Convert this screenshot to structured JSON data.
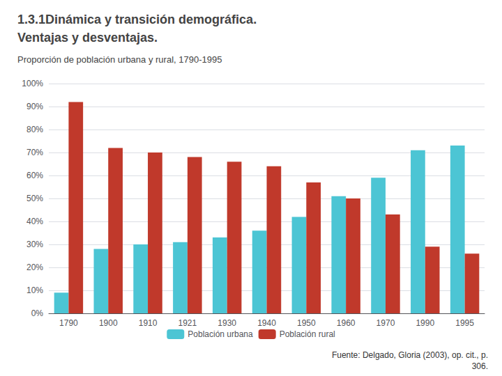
{
  "chart_data": {
    "type": "bar",
    "title": "1.3.1Dinámica y transición demográfica.\nVentajas y desventajas.",
    "subtitle": "Proporción de población urbana y rural, 1790-1995",
    "categories": [
      "1790",
      "1900",
      "1910",
      "1921",
      "1930",
      "1940",
      "1950",
      "1960",
      "1970",
      "1990",
      "1995"
    ],
    "series": [
      {
        "name": "Población urbana",
        "color": "#4CC5D4",
        "values": [
          9,
          28,
          30,
          31,
          33,
          36,
          42,
          51,
          59,
          71,
          73
        ]
      },
      {
        "name": "Población rural",
        "color": "#C0392B",
        "values": [
          92,
          72,
          70,
          68,
          66,
          64,
          57,
          50,
          43,
          29,
          26
        ]
      }
    ],
    "ylim": [
      0,
      100
    ],
    "yticks": [
      {
        "value": 0,
        "label": "0%"
      },
      {
        "value": 10,
        "label": "10%"
      },
      {
        "value": 20,
        "label": "20%"
      },
      {
        "value": 30,
        "label": "30%"
      },
      {
        "value": 40,
        "label": "40%"
      },
      {
        "value": 50,
        "label": "50%"
      },
      {
        "value": 60,
        "label": "60%"
      },
      {
        "value": 70,
        "label": "70%"
      },
      {
        "value": 80,
        "label": "80%"
      },
      {
        "value": 90,
        "label": "90%"
      },
      {
        "value": 100,
        "label": "100%"
      }
    ],
    "grid": true,
    "legend": "bottom",
    "annotations": [
      "Fuente: Delgado, Gloria (2003), op. cit., p.",
      "306."
    ]
  }
}
